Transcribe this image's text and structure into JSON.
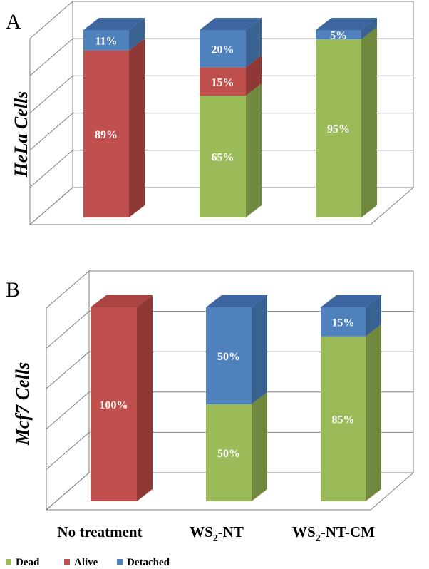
{
  "chart_data": [
    {
      "type": "bar",
      "stacked": true,
      "panel": "A",
      "ylabel": "HeLa Cells",
      "categories": [
        "No treatment",
        "WS2-NT",
        "WS2-NT-CM"
      ],
      "ylim": [
        0,
        100
      ],
      "series": [
        {
          "name": "Dead",
          "values": [
            0,
            65,
            95
          ],
          "labels": [
            "",
            "65%",
            "95%"
          ]
        },
        {
          "name": "Alive",
          "values": [
            89,
            15,
            0
          ],
          "labels": [
            "89%",
            "15%",
            ""
          ]
        },
        {
          "name": "Detached",
          "values": [
            11,
            20,
            5
          ],
          "labels": [
            "11%",
            "20%",
            "5%"
          ]
        }
      ]
    },
    {
      "type": "bar",
      "stacked": true,
      "panel": "B",
      "ylabel": "Mcf7 Cells",
      "categories": [
        "No treatment",
        "WS2-NT",
        "WS2-NT-CM"
      ],
      "ylim": [
        0,
        100
      ],
      "series": [
        {
          "name": "Dead",
          "values": [
            0,
            50,
            85
          ],
          "labels": [
            "",
            "50%",
            "85%"
          ]
        },
        {
          "name": "Alive",
          "values": [
            100,
            0,
            0
          ],
          "labels": [
            "100%",
            "",
            ""
          ]
        },
        {
          "name": "Detached",
          "values": [
            0,
            50,
            15
          ],
          "labels": [
            "",
            "50%",
            "15%"
          ]
        }
      ]
    }
  ],
  "categories_display": [
    {
      "main": "No treatment",
      "sub": "",
      "tail": ""
    },
    {
      "main": "WS",
      "sub": "2",
      "tail": "-NT"
    },
    {
      "main": "WS",
      "sub": "2",
      "tail": "-NT-CM"
    }
  ],
  "legend": [
    {
      "name": "Dead",
      "color": "#9bbb59"
    },
    {
      "name": "Alive",
      "color": "#c0504d"
    },
    {
      "name": "Detached",
      "color": "#4f81bd"
    }
  ],
  "colors": {
    "Dead": {
      "front": "#9bbb59",
      "side": "#71893f",
      "top": "#8aaa4e"
    },
    "Alive": {
      "front": "#c0504d",
      "side": "#8f3734",
      "top": "#a94442"
    },
    "Detached": {
      "front": "#4f81bd",
      "side": "#3a6290",
      "top": "#3d66a0"
    }
  }
}
